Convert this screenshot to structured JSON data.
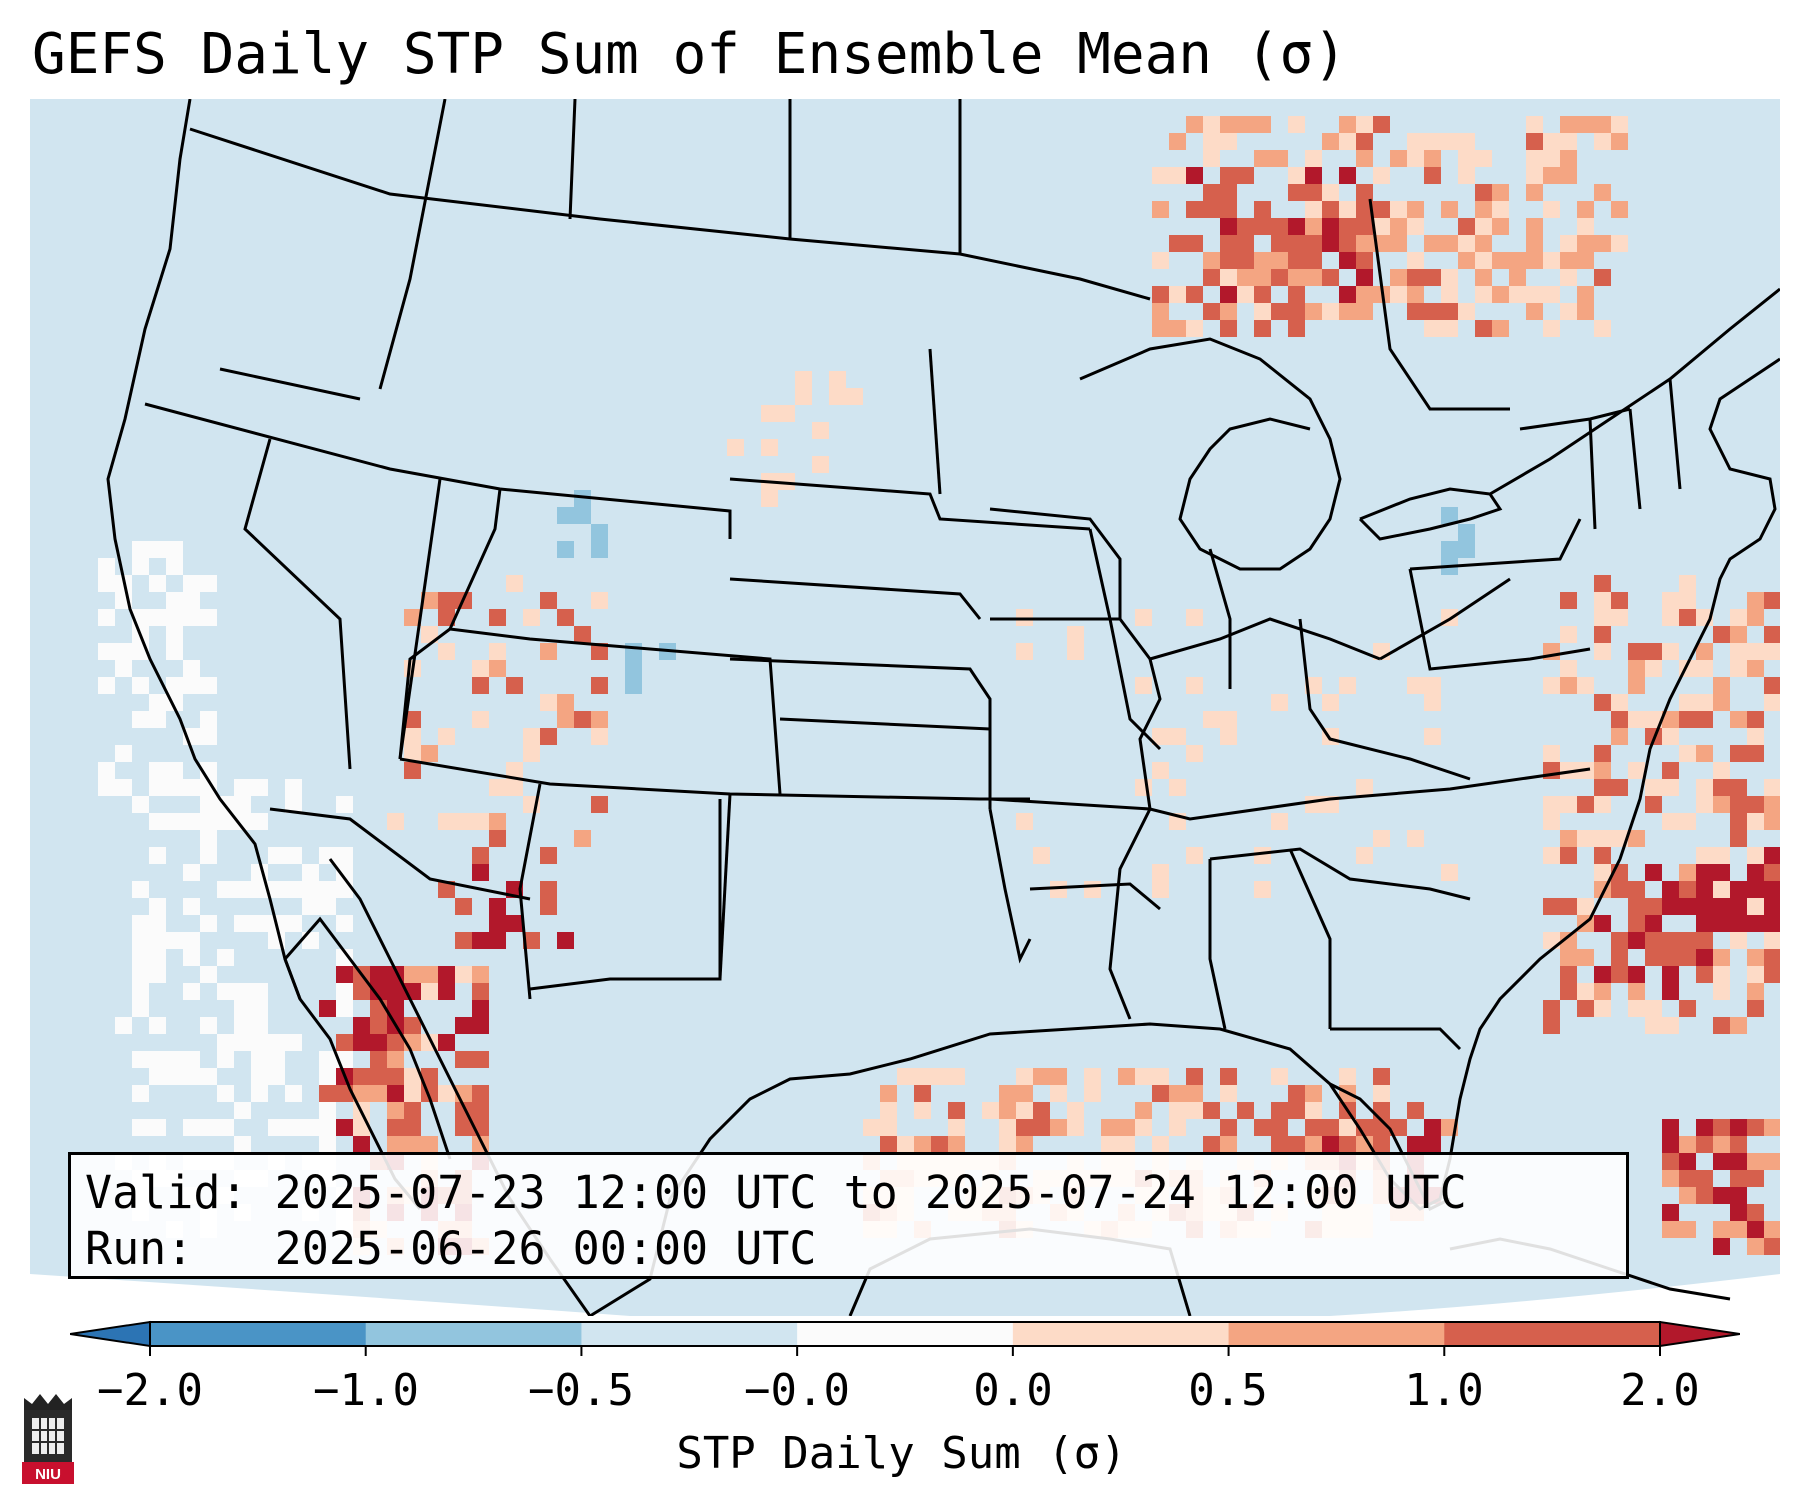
{
  "title": "GEFS Daily STP Sum of Ensemble Mean (σ)",
  "info": {
    "valid_line": "Valid: 2025-07-23 12:00 UTC to 2025-07-24 12:00 UTC",
    "run_line": "Run:   2025-06-26 00:00 UTC"
  },
  "colorbar": {
    "label": "STP Daily Sum (σ)",
    "ticks": [
      "−2.0",
      "−1.0",
      "−0.5",
      "−0.0",
      "0.0",
      "0.5",
      "1.0",
      "2.0"
    ],
    "colors": [
      "#2c74b4",
      "#4a94c6",
      "#92c5de",
      "#d1e5f0",
      "#fbfbfb",
      "#fddbc7",
      "#f4a582",
      "#d6604d",
      "#b2182b"
    ],
    "under_color": "#2c74b4",
    "over_color": "#b2182b"
  },
  "map": {
    "background_color": "#d1e5f0",
    "land_border_color": "#000000",
    "highlights": [
      "Positive anomalies over northeastern Canada, Gulf of Mexico, western Atlantic and Caribbean",
      "Mostly neutral-positive over the CONUS"
    ]
  },
  "logo": {
    "text": "NIU"
  }
}
